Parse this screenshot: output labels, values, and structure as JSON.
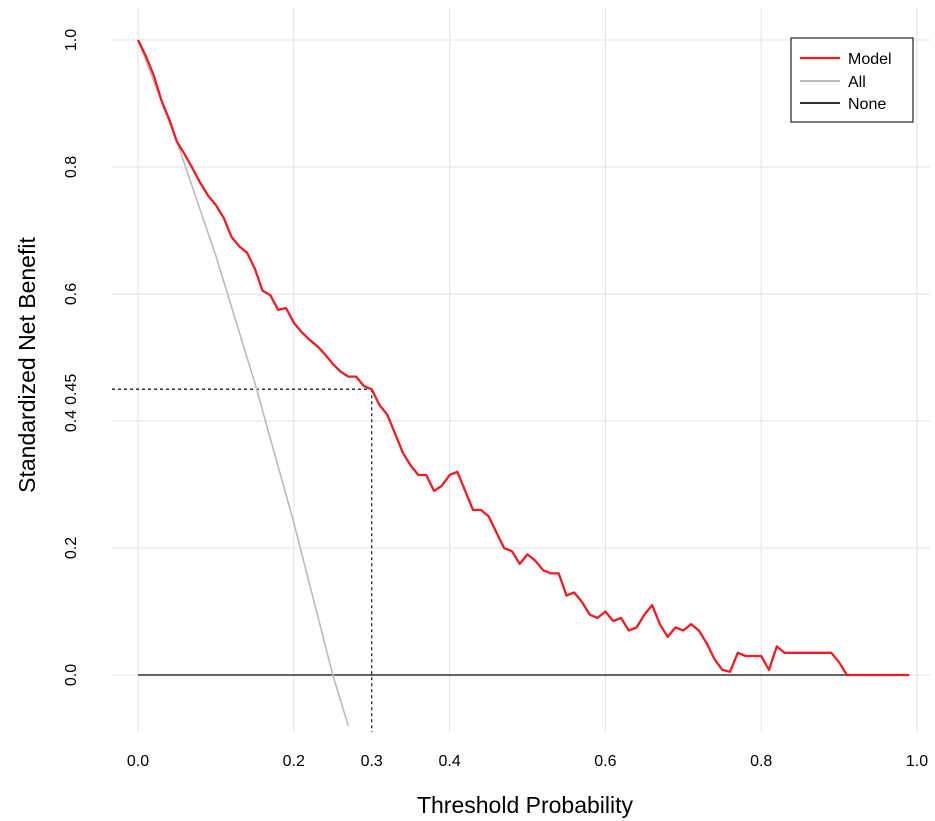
{
  "chart_data": {
    "type": "line",
    "title": "",
    "xlabel": "Threshold Probability",
    "ylabel": "Standardized Net Benefit",
    "xlim": [
      0,
      1.0
    ],
    "ylim": [
      -0.08,
      1.0
    ],
    "grid": true,
    "legend_position": "top-right",
    "x_ticks": [
      {
        "value": 0.0,
        "label": "0.0"
      },
      {
        "value": 0.2,
        "label": "0.2"
      },
      {
        "value": 0.3,
        "label": "0.3"
      },
      {
        "value": 0.4,
        "label": "0.4"
      },
      {
        "value": 0.6,
        "label": "0.6"
      },
      {
        "value": 0.8,
        "label": "0.8"
      },
      {
        "value": 1.0,
        "label": "1.0"
      }
    ],
    "y_ticks": [
      {
        "value": 0.0,
        "label": "0.0"
      },
      {
        "value": 0.2,
        "label": "0.2"
      },
      {
        "value": 0.4,
        "label": "0.4"
      },
      {
        "value": 0.45,
        "label": "0.45"
      },
      {
        "value": 0.6,
        "label": "0.6"
      },
      {
        "value": 0.8,
        "label": "0.8"
      },
      {
        "value": 1.0,
        "label": "1.0"
      }
    ],
    "x_grid": [
      0.0,
      0.2,
      0.4,
      0.6,
      0.8,
      1.0
    ],
    "y_grid": [
      0.0,
      0.2,
      0.4,
      0.6,
      0.8,
      1.0
    ],
    "reference_lines": [
      {
        "x": 0.3,
        "y": 0.45,
        "style": "dotted",
        "color": "#333333"
      }
    ],
    "series": [
      {
        "name": "Model",
        "color": "#ee1c25",
        "x": [
          0.0,
          0.01,
          0.02,
          0.03,
          0.04,
          0.05,
          0.06,
          0.07,
          0.08,
          0.09,
          0.1,
          0.11,
          0.12,
          0.13,
          0.14,
          0.15,
          0.16,
          0.17,
          0.18,
          0.19,
          0.2,
          0.21,
          0.22,
          0.23,
          0.24,
          0.25,
          0.26,
          0.27,
          0.28,
          0.29,
          0.3,
          0.31,
          0.32,
          0.33,
          0.34,
          0.35,
          0.36,
          0.37,
          0.38,
          0.39,
          0.4,
          0.41,
          0.42,
          0.43,
          0.44,
          0.45,
          0.46,
          0.47,
          0.48,
          0.49,
          0.5,
          0.51,
          0.52,
          0.53,
          0.54,
          0.55,
          0.56,
          0.57,
          0.58,
          0.59,
          0.6,
          0.61,
          0.62,
          0.63,
          0.64,
          0.65,
          0.66,
          0.67,
          0.68,
          0.69,
          0.7,
          0.71,
          0.72,
          0.73,
          0.74,
          0.75,
          0.76,
          0.77,
          0.78,
          0.79,
          0.8,
          0.81,
          0.82,
          0.83,
          0.84,
          0.85,
          0.86,
          0.87,
          0.88,
          0.89,
          0.9,
          0.91,
          0.92,
          0.93,
          0.94,
          0.95,
          0.96,
          0.97,
          0.98,
          0.99
        ],
        "y": [
          1.0,
          0.975,
          0.945,
          0.905,
          0.875,
          0.84,
          0.82,
          0.798,
          0.775,
          0.755,
          0.74,
          0.72,
          0.69,
          0.675,
          0.665,
          0.64,
          0.605,
          0.598,
          0.575,
          0.578,
          0.555,
          0.54,
          0.528,
          0.518,
          0.505,
          0.49,
          0.478,
          0.47,
          0.47,
          0.455,
          0.45,
          0.425,
          0.41,
          0.38,
          0.35,
          0.33,
          0.315,
          0.315,
          0.29,
          0.298,
          0.315,
          0.32,
          0.29,
          0.26,
          0.26,
          0.25,
          0.225,
          0.2,
          0.195,
          0.175,
          0.19,
          0.18,
          0.165,
          0.16,
          0.16,
          0.125,
          0.13,
          0.115,
          0.095,
          0.09,
          0.1,
          0.085,
          0.09,
          0.07,
          0.075,
          0.095,
          0.11,
          0.08,
          0.06,
          0.075,
          0.07,
          0.08,
          0.07,
          0.05,
          0.025,
          0.008,
          0.005,
          0.035,
          0.03,
          0.03,
          0.03,
          0.008,
          0.045,
          0.035,
          0.035,
          0.035,
          0.035,
          0.035,
          0.035,
          0.035,
          0.02,
          0.0,
          0.0,
          0.0,
          0.0,
          0.0,
          0.0,
          0.0,
          0.0,
          0.0
        ]
      },
      {
        "name": "All",
        "color": "#bbbbbb",
        "x": [
          0.0,
          0.05,
          0.1,
          0.15,
          0.2,
          0.25,
          0.27
        ],
        "y": [
          1.0,
          0.84,
          0.66,
          0.46,
          0.24,
          0.0,
          -0.08
        ]
      },
      {
        "name": "None",
        "color": "#333333",
        "x": [
          0.0,
          0.99
        ],
        "y": [
          0.0,
          0.0
        ]
      }
    ]
  }
}
